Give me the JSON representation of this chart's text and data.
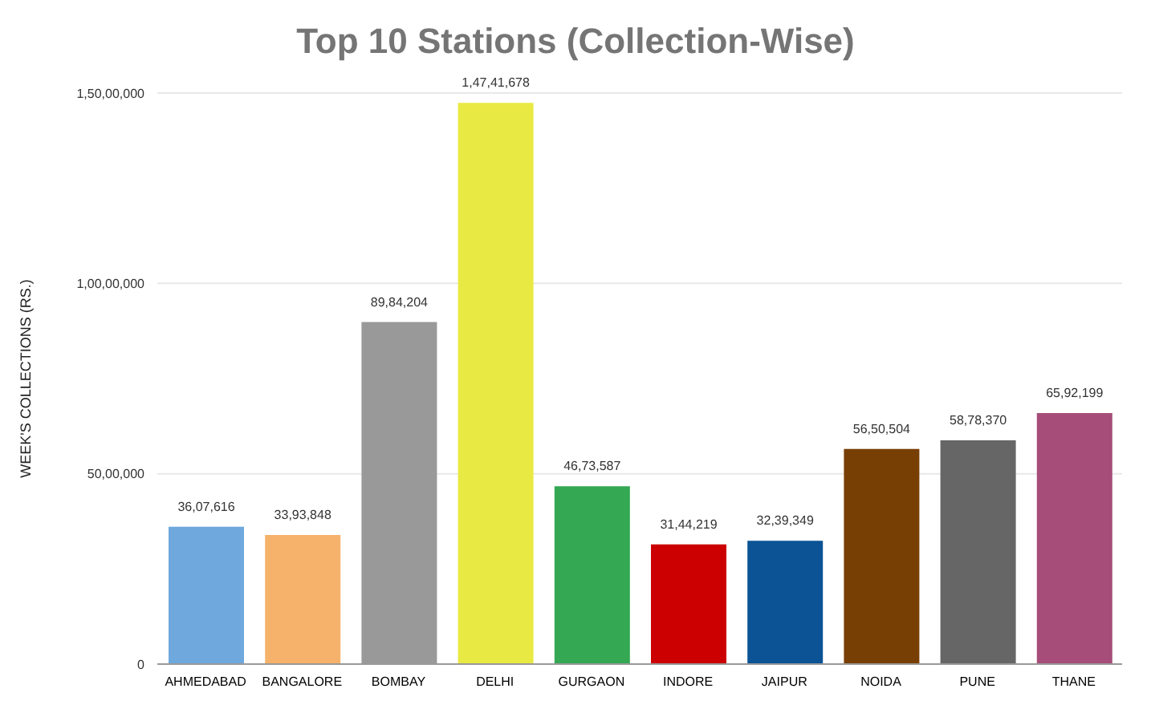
{
  "chart_data": {
    "type": "bar",
    "title": "Top 10 Stations (Collection-Wise)",
    "ylabel": "WEEK'S COLLECTIONS (RS.)",
    "categories": [
      "AHMEDABAD",
      "BANGALORE",
      "BOMBAY",
      "DELHI",
      "GURGAON",
      "INDORE",
      "JAIPUR",
      "NOIDA",
      "PUNE",
      "THANE"
    ],
    "values": [
      3607616,
      3393848,
      8984204,
      14741678,
      4673587,
      3144219,
      3239349,
      5650504,
      5878370,
      6592199
    ],
    "value_labels": [
      "36,07,616",
      "33,93,848",
      "89,84,204",
      "1,47,41,678",
      "46,73,587",
      "31,44,219",
      "32,39,349",
      "56,50,504",
      "58,78,370",
      "65,92,199"
    ],
    "colors": [
      "#6fa8dc",
      "#f6b26b",
      "#999999",
      "#e9e943",
      "#34a853",
      "#cc0000",
      "#0b5394",
      "#783f04",
      "#666666",
      "#a64d79"
    ],
    "ylim": [
      0,
      15000000
    ],
    "yticks": [
      {
        "value": 0,
        "label": "0"
      },
      {
        "value": 5000000,
        "label": "50,00,000"
      },
      {
        "value": 10000000,
        "label": "1,00,00,000"
      },
      {
        "value": 15000000,
        "label": "1,50,00,000"
      }
    ],
    "grid": "y"
  }
}
